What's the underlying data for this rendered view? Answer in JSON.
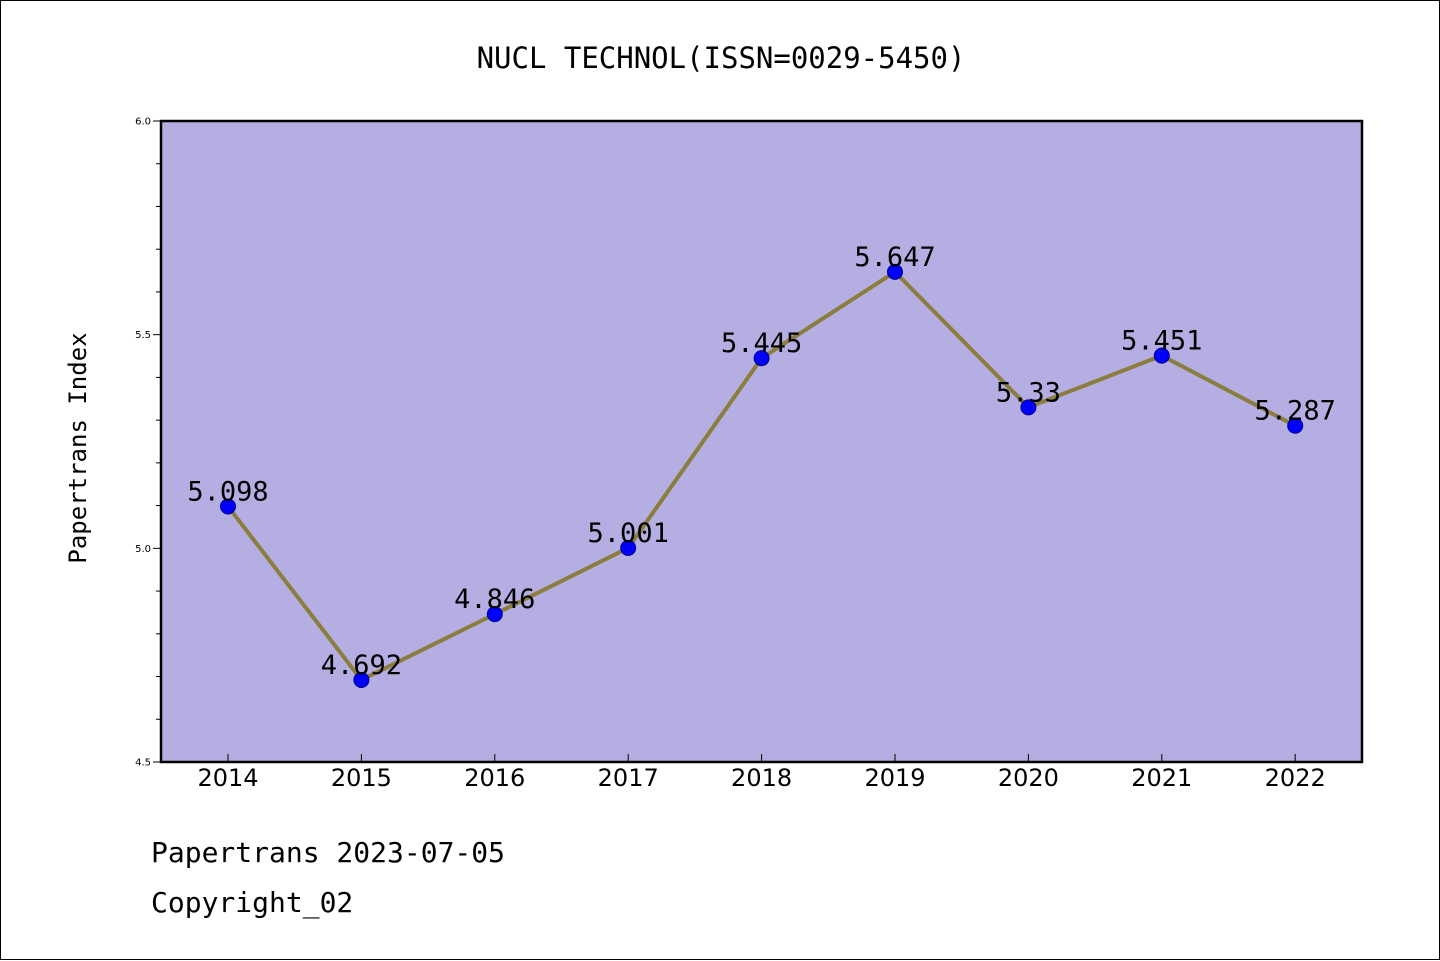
{
  "chart_data": {
    "type": "line",
    "title": "NUCL TECHNOL(ISSN=0029-5450)",
    "xlabel": "",
    "ylabel": "Papertrans Index",
    "categories": [
      "2014",
      "2015",
      "2016",
      "2017",
      "2018",
      "2019",
      "2020",
      "2021",
      "2022"
    ],
    "series": [
      {
        "values": [
          5.098,
          4.692,
          4.846,
          5.001,
          5.445,
          5.647,
          5.33,
          5.451,
          5.287
        ],
        "labels": [
          "5.098",
          "4.692",
          "4.846",
          "5.001",
          "5.445",
          "5.647",
          "5.33",
          "5.451",
          "5.287"
        ]
      }
    ],
    "ylim": [
      4.5,
      6.0
    ],
    "yticks": [
      "4.5",
      "5.0",
      "5.5",
      "6.0"
    ],
    "grid": false,
    "colors": {
      "plot_background": "#b5aee2",
      "line": "#8b7d3e",
      "marker": "#0000ff"
    }
  },
  "footer": {
    "line1": "Papertrans 2023-07-05",
    "line2": "Copyright_02"
  }
}
